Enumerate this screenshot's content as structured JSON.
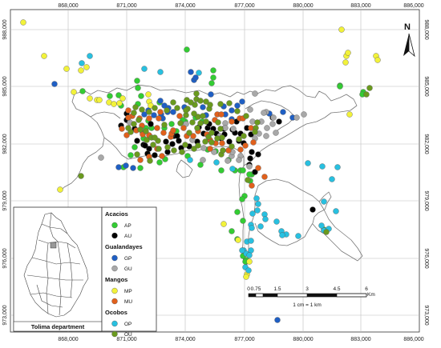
{
  "x_ticks": [
    "868,000",
    "871,000",
    "874,000",
    "877,000",
    "880,000",
    "883,000",
    "886,000"
  ],
  "y_ticks": [
    "988,000",
    "985,000",
    "982,000",
    "979,000",
    "976,000",
    "973,000"
  ],
  "north_label": "N",
  "scale_bar": {
    "labels": [
      "0",
      "0.75",
      "1.5",
      "3",
      "4.5",
      "6"
    ],
    "unit": "Km",
    "ratio_text": "1 cm = 1 km"
  },
  "inset_title": "Tolima department",
  "legend": {
    "groups": [
      {
        "name": "Acacios",
        "items": [
          {
            "code": "AP",
            "color": "#33cc33"
          },
          {
            "code": "AU",
            "color": "#000000"
          }
        ]
      },
      {
        "name": "Gualandayes",
        "items": [
          {
            "code": "GP",
            "color": "#1f5fc4"
          },
          {
            "code": "GU",
            "color": "#a8a8a8"
          }
        ]
      },
      {
        "name": "Mangos",
        "items": [
          {
            "code": "MP",
            "color": "#f2f23a"
          },
          {
            "code": "MU",
            "color": "#e0601c"
          }
        ]
      },
      {
        "name": "Ocobos",
        "items": [
          {
            "code": "OP",
            "color": "#28c0e0"
          },
          {
            "code": "OU",
            "color": "#6a9a1e"
          }
        ]
      }
    ]
  },
  "points": {
    "AP": [
      [
        103,
        114
      ],
      [
        148,
        119
      ],
      [
        171,
        101
      ],
      [
        172,
        110
      ],
      [
        199,
        128
      ],
      [
        231,
        152
      ],
      [
        266,
        97
      ],
      [
        264,
        104
      ],
      [
        233,
        62
      ],
      [
        228,
        150
      ],
      [
        244,
        147
      ],
      [
        252,
        152
      ],
      [
        214,
        155
      ],
      [
        189,
        160
      ],
      [
        179,
        173
      ],
      [
        259,
        187
      ],
      [
        269,
        189
      ],
      [
        285,
        200
      ],
      [
        300,
        213
      ],
      [
        314,
        218
      ],
      [
        305,
        245
      ],
      [
        424,
        107
      ],
      [
        424,
        108
      ],
      [
        453,
        115
      ],
      [
        452,
        118
      ],
      [
        404,
        287
      ],
      [
        266,
        88
      ],
      [
        137,
        120
      ],
      [
        151,
        132
      ],
      [
        176,
        120
      ],
      [
        172,
        130
      ],
      [
        185,
        151
      ],
      [
        182,
        160
      ],
      [
        178,
        166
      ],
      [
        205,
        160
      ],
      [
        220,
        164
      ],
      [
        168,
        184
      ],
      [
        163,
        194
      ],
      [
        154,
        209
      ],
      [
        175,
        210
      ],
      [
        199,
        203
      ],
      [
        206,
        199
      ],
      [
        234,
        195
      ],
      [
        250,
        206
      ],
      [
        276,
        213
      ],
      [
        293,
        213
      ],
      [
        303,
        213
      ],
      [
        311,
        218
      ],
      [
        312,
        226
      ],
      [
        302,
        249
      ],
      [
        296,
        265
      ],
      [
        303,
        276
      ],
      [
        289,
        289
      ],
      [
        296,
        299
      ],
      [
        303,
        320
      ],
      [
        307,
        325
      ],
      [
        306,
        327
      ]
    ],
    "AU": [
      [
        158,
        142
      ],
      [
        188,
        155
      ],
      [
        171,
        176
      ],
      [
        179,
        181
      ],
      [
        186,
        186
      ],
      [
        193,
        194
      ],
      [
        217,
        170
      ],
      [
        221,
        170
      ],
      [
        223,
        176
      ],
      [
        226,
        185
      ],
      [
        236,
        183
      ],
      [
        246,
        177
      ],
      [
        254,
        167
      ],
      [
        259,
        160
      ],
      [
        266,
        161
      ],
      [
        270,
        167
      ],
      [
        276,
        173
      ],
      [
        280,
        168
      ],
      [
        286,
        177
      ],
      [
        290,
        162
      ],
      [
        300,
        167
      ],
      [
        295,
        152
      ],
      [
        308,
        160
      ],
      [
        313,
        168
      ],
      [
        314,
        190
      ],
      [
        322,
        193
      ],
      [
        318,
        215
      ],
      [
        340,
        147
      ],
      [
        348,
        152
      ],
      [
        390,
        262
      ],
      [
        158,
        150
      ],
      [
        151,
        157
      ],
      [
        168,
        161
      ],
      [
        181,
        182
      ],
      [
        184,
        192
      ],
      [
        207,
        177
      ],
      [
        209,
        190
      ],
      [
        215,
        180
      ],
      [
        248,
        159
      ],
      [
        261,
        155
      ],
      [
        279,
        161
      ],
      [
        293,
        166
      ],
      [
        298,
        176
      ],
      [
        304,
        179
      ],
      [
        312,
        198
      ],
      [
        311,
        206
      ]
    ],
    "GP": [
      [
        68,
        105
      ],
      [
        148,
        209
      ],
      [
        157,
        207
      ],
      [
        166,
        210
      ],
      [
        200,
        126
      ],
      [
        205,
        132
      ],
      [
        210,
        135
      ],
      [
        216,
        140
      ],
      [
        238,
        90
      ],
      [
        242,
        100
      ],
      [
        244,
        97
      ],
      [
        263,
        118
      ],
      [
        296,
        132
      ],
      [
        302,
        127
      ],
      [
        336,
        142
      ],
      [
        353,
        140
      ],
      [
        365,
        147
      ],
      [
        346,
        400
      ],
      [
        185,
        138
      ],
      [
        180,
        143
      ],
      [
        192,
        144
      ],
      [
        201,
        143
      ],
      [
        209,
        140
      ],
      [
        203,
        148
      ],
      [
        230,
        134
      ],
      [
        253,
        134
      ],
      [
        257,
        144
      ],
      [
        279,
        133
      ],
      [
        281,
        143
      ],
      [
        289,
        138
      ],
      [
        289,
        149
      ]
    ],
    "GU": [
      [
        126,
        197
      ],
      [
        162,
        153
      ],
      [
        232,
        155
      ],
      [
        240,
        175
      ],
      [
        253,
        200
      ],
      [
        254,
        185
      ],
      [
        267,
        190
      ],
      [
        274,
        170
      ],
      [
        285,
        188
      ],
      [
        289,
        195
      ],
      [
        300,
        195
      ],
      [
        298,
        200
      ],
      [
        311,
        208
      ],
      [
        318,
        117
      ],
      [
        332,
        140
      ],
      [
        341,
        147
      ],
      [
        370,
        147
      ],
      [
        379,
        143
      ],
      [
        312,
        137
      ],
      [
        329,
        141
      ],
      [
        315,
        152
      ],
      [
        326,
        152
      ],
      [
        340,
        155
      ],
      [
        281,
        154
      ],
      [
        281,
        160
      ],
      [
        291,
        161
      ],
      [
        290,
        190
      ],
      [
        284,
        201
      ],
      [
        318,
        173
      ],
      [
        323,
        167
      ],
      [
        333,
        160
      ],
      [
        332,
        170
      ],
      [
        344,
        166
      ]
    ],
    "MP": [
      [
        29,
        28
      ],
      [
        55,
        70
      ],
      [
        75,
        237
      ],
      [
        83,
        86
      ],
      [
        92,
        115
      ],
      [
        101,
        88
      ],
      [
        108,
        84
      ],
      [
        112,
        123
      ],
      [
        121,
        125
      ],
      [
        124,
        125
      ],
      [
        136,
        128
      ],
      [
        142,
        130
      ],
      [
        149,
        129
      ],
      [
        153,
        123
      ],
      [
        185,
        118
      ],
      [
        186,
        127
      ],
      [
        188,
        132
      ],
      [
        279,
        280
      ],
      [
        297,
        300
      ],
      [
        308,
        343
      ],
      [
        307,
        346
      ],
      [
        311,
        327
      ],
      [
        426,
        37
      ],
      [
        432,
        70
      ],
      [
        431,
        78
      ],
      [
        434,
        66
      ],
      [
        469,
        70
      ],
      [
        471,
        75
      ],
      [
        436,
        143
      ]
    ],
    "MU": [
      [
        160,
        138
      ],
      [
        165,
        145
      ],
      [
        174,
        148
      ],
      [
        177,
        157
      ],
      [
        186,
        148
      ],
      [
        198,
        148
      ],
      [
        196,
        160
      ],
      [
        204,
        166
      ],
      [
        213,
        171
      ],
      [
        214,
        167
      ],
      [
        224,
        145
      ],
      [
        229,
        160
      ],
      [
        233,
        170
      ],
      [
        241,
        170
      ],
      [
        247,
        164
      ],
      [
        258,
        168
      ],
      [
        262,
        175
      ],
      [
        268,
        150
      ],
      [
        271,
        143
      ],
      [
        276,
        143
      ],
      [
        289,
        152
      ],
      [
        299,
        148
      ],
      [
        303,
        148
      ],
      [
        313,
        160
      ],
      [
        316,
        178
      ],
      [
        306,
        182
      ],
      [
        300,
        187
      ],
      [
        285,
        188
      ],
      [
        277,
        179
      ],
      [
        196,
        186
      ],
      [
        202,
        195
      ],
      [
        175,
        200
      ],
      [
        186,
        196
      ],
      [
        178,
        168
      ],
      [
        170,
        163
      ],
      [
        152,
        161
      ],
      [
        158,
        169
      ],
      [
        186,
        169
      ],
      [
        269,
        179
      ],
      [
        262,
        186
      ],
      [
        200,
        140
      ],
      [
        216,
        163
      ],
      [
        160,
        147
      ],
      [
        322,
        210
      ],
      [
        330,
        221
      ],
      [
        314,
        232
      ]
    ],
    "OP": [
      [
        112,
        70
      ],
      [
        102,
        79
      ],
      [
        180,
        86
      ],
      [
        200,
        90
      ],
      [
        248,
        91
      ],
      [
        237,
        200
      ],
      [
        270,
        203
      ],
      [
        290,
        211
      ],
      [
        320,
        248
      ],
      [
        330,
        268
      ],
      [
        331,
        274
      ],
      [
        345,
        277
      ],
      [
        351,
        289
      ],
      [
        357,
        293
      ],
      [
        352,
        294
      ],
      [
        372,
        295
      ],
      [
        384,
        204
      ],
      [
        402,
        208
      ],
      [
        421,
        209
      ],
      [
        414,
        224
      ],
      [
        404,
        252
      ],
      [
        419,
        264
      ],
      [
        410,
        286
      ],
      [
        404,
        288
      ],
      [
        401,
        282
      ],
      [
        304,
        313
      ],
      [
        306,
        334
      ],
      [
        321,
        263
      ],
      [
        313,
        281
      ],
      [
        308,
        302
      ],
      [
        307,
        317
      ],
      [
        310,
        338
      ],
      [
        315,
        267
      ],
      [
        322,
        255
      ],
      [
        314,
        285
      ],
      [
        325,
        283
      ],
      [
        313,
        301
      ],
      [
        313,
        313
      ],
      [
        302,
        313
      ],
      [
        311,
        319
      ]
    ],
    "OU": [
      [
        101,
        220
      ],
      [
        163,
        165
      ],
      [
        171,
        193
      ],
      [
        182,
        164
      ],
      [
        187,
        201
      ],
      [
        197,
        176
      ],
      [
        205,
        156
      ],
      [
        225,
        154
      ],
      [
        232,
        144
      ],
      [
        243,
        131
      ],
      [
        247,
        146
      ],
      [
        253,
        145
      ],
      [
        261,
        136
      ],
      [
        275,
        130
      ],
      [
        286,
        129
      ],
      [
        296,
        139
      ],
      [
        307,
        145
      ],
      [
        321,
        153
      ],
      [
        319,
        160
      ],
      [
        318,
        165
      ],
      [
        304,
        170
      ],
      [
        276,
        193
      ],
      [
        277,
        172
      ],
      [
        309,
        225
      ],
      [
        278,
        188
      ],
      [
        289,
        183
      ],
      [
        298,
        174
      ],
      [
        275,
        161
      ],
      [
        272,
        153
      ],
      [
        262,
        131
      ],
      [
        257,
        127
      ],
      [
        245,
        124
      ],
      [
        233,
        125
      ],
      [
        221,
        135
      ],
      [
        216,
        128
      ],
      [
        208,
        138
      ],
      [
        193,
        135
      ],
      [
        186,
        140
      ],
      [
        177,
        137
      ],
      [
        169,
        134
      ],
      [
        167,
        141
      ],
      [
        173,
        150
      ],
      [
        167,
        155
      ],
      [
        160,
        160
      ],
      [
        175,
        162
      ],
      [
        183,
        175
      ],
      [
        189,
        172
      ],
      [
        191,
        181
      ],
      [
        198,
        186
      ],
      [
        193,
        172
      ],
      [
        209,
        184
      ],
      [
        217,
        188
      ],
      [
        227,
        190
      ],
      [
        231,
        181
      ],
      [
        242,
        186
      ],
      [
        247,
        182
      ],
      [
        256,
        177
      ],
      [
        264,
        178
      ],
      [
        271,
        173
      ],
      [
        260,
        171
      ],
      [
        264,
        166
      ],
      [
        246,
        160
      ],
      [
        250,
        154
      ],
      [
        257,
        152
      ],
      [
        240,
        153
      ],
      [
        236,
        166
      ],
      [
        234,
        136
      ],
      [
        242,
        142
      ],
      [
        232,
        138
      ],
      [
        238,
        128
      ],
      [
        250,
        126
      ],
      [
        245,
        117
      ],
      [
        461,
        110
      ],
      [
        457,
        118
      ],
      [
        407,
        290
      ]
    ]
  }
}
